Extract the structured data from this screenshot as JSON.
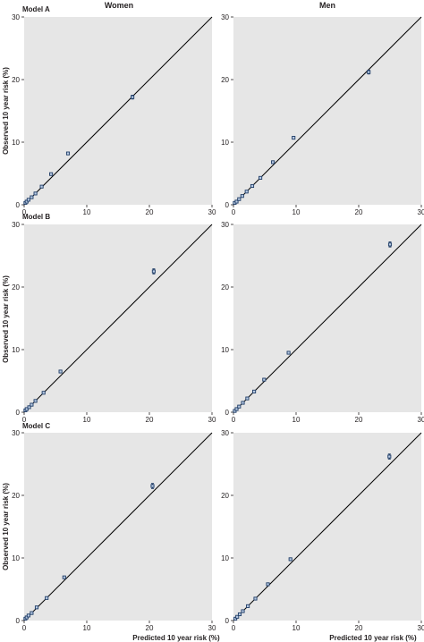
{
  "figure": {
    "columns": [
      "Women",
      "Men"
    ],
    "rows": [
      "Model A",
      "Model B",
      "Model C"
    ],
    "ylabel": "Observed 10 year risk (%)",
    "xlabel": "Predicted 10 year risk (%)"
  },
  "colors": {
    "panel_background": "#e6e6e6",
    "point_fill": "#b9cbe4",
    "point_edge": "#1f3c66",
    "reference_line": "#000000"
  },
  "chart_data": [
    {
      "type": "scatter",
      "model": "Model A",
      "sex": "Women",
      "xlim": [
        0,
        30
      ],
      "ylim": [
        0,
        30
      ],
      "xticks": [
        "0",
        "10",
        "20",
        "30"
      ],
      "yticks": [
        "0",
        "10",
        "20",
        "30"
      ],
      "reference_line": "y = x",
      "points": [
        {
          "x": 0.2,
          "y": 0.3,
          "lo": 0.2,
          "hi": 0.4
        },
        {
          "x": 0.4,
          "y": 0.5,
          "lo": 0.4,
          "hi": 0.6
        },
        {
          "x": 0.7,
          "y": 0.8,
          "lo": 0.7,
          "hi": 0.9
        },
        {
          "x": 1.2,
          "y": 1.2,
          "lo": 1.1,
          "hi": 1.3
        },
        {
          "x": 1.8,
          "y": 1.8,
          "lo": 1.7,
          "hi": 1.9
        },
        {
          "x": 2.8,
          "y": 2.9,
          "lo": 2.8,
          "hi": 3.0
        },
        {
          "x": 4.3,
          "y": 4.9,
          "lo": 4.8,
          "hi": 5.0
        },
        {
          "x": 7.0,
          "y": 8.2,
          "lo": 8.1,
          "hi": 8.3
        },
        {
          "x": 17.3,
          "y": 17.2,
          "lo": 16.9,
          "hi": 17.5
        }
      ]
    },
    {
      "type": "scatter",
      "model": "Model A",
      "sex": "Men",
      "xlim": [
        0,
        30
      ],
      "ylim": [
        0,
        30
      ],
      "xticks": [
        "0",
        "10",
        "20",
        "30"
      ],
      "yticks": [
        "0",
        "10",
        "20",
        "30"
      ],
      "reference_line": "y = x",
      "points": [
        {
          "x": 0.2,
          "y": 0.3,
          "lo": 0.2,
          "hi": 0.4
        },
        {
          "x": 0.5,
          "y": 0.5,
          "lo": 0.4,
          "hi": 0.6
        },
        {
          "x": 0.9,
          "y": 0.9,
          "lo": 0.8,
          "hi": 1.0
        },
        {
          "x": 1.4,
          "y": 1.4,
          "lo": 1.3,
          "hi": 1.5
        },
        {
          "x": 2.1,
          "y": 2.1,
          "lo": 2.0,
          "hi": 2.2
        },
        {
          "x": 3.0,
          "y": 3.0,
          "lo": 2.9,
          "hi": 3.1
        },
        {
          "x": 4.3,
          "y": 4.3,
          "lo": 4.2,
          "hi": 4.4
        },
        {
          "x": 6.3,
          "y": 6.8,
          "lo": 6.7,
          "hi": 6.9
        },
        {
          "x": 9.6,
          "y": 10.7,
          "lo": 10.5,
          "hi": 10.9
        },
        {
          "x": 21.6,
          "y": 21.2,
          "lo": 20.9,
          "hi": 21.5
        }
      ]
    },
    {
      "type": "scatter",
      "model": "Model B",
      "sex": "Women",
      "xlim": [
        0,
        30
      ],
      "ylim": [
        0,
        30
      ],
      "xticks": [
        "0",
        "10",
        "20",
        "30"
      ],
      "yticks": [
        "0",
        "10",
        "20",
        "30"
      ],
      "reference_line": "y = x",
      "points": [
        {
          "x": 0.2,
          "y": 0.3,
          "lo": 0.2,
          "hi": 0.4
        },
        {
          "x": 0.4,
          "y": 0.5,
          "lo": 0.4,
          "hi": 0.6
        },
        {
          "x": 0.8,
          "y": 0.8,
          "lo": 0.7,
          "hi": 0.9
        },
        {
          "x": 1.2,
          "y": 1.2,
          "lo": 1.1,
          "hi": 1.3
        },
        {
          "x": 1.8,
          "y": 1.8,
          "lo": 1.7,
          "hi": 1.9
        },
        {
          "x": 3.1,
          "y": 3.1,
          "lo": 3.0,
          "hi": 3.2
        },
        {
          "x": 5.8,
          "y": 6.5,
          "lo": 6.4,
          "hi": 6.6
        },
        {
          "x": 20.7,
          "y": 22.5,
          "lo": 22.1,
          "hi": 22.9
        }
      ]
    },
    {
      "type": "scatter",
      "model": "Model B",
      "sex": "Men",
      "xlim": [
        0,
        30
      ],
      "ylim": [
        0,
        30
      ],
      "xticks": [
        "0",
        "10",
        "20",
        "30"
      ],
      "yticks": [
        "0",
        "10",
        "20",
        "30"
      ],
      "reference_line": "y = x",
      "points": [
        {
          "x": 0.2,
          "y": 0.2,
          "lo": 0.1,
          "hi": 0.3
        },
        {
          "x": 0.5,
          "y": 0.5,
          "lo": 0.4,
          "hi": 0.6
        },
        {
          "x": 0.9,
          "y": 0.9,
          "lo": 0.8,
          "hi": 1.0
        },
        {
          "x": 1.5,
          "y": 1.5,
          "lo": 1.4,
          "hi": 1.6
        },
        {
          "x": 2.2,
          "y": 2.2,
          "lo": 2.1,
          "hi": 2.3
        },
        {
          "x": 3.3,
          "y": 3.3,
          "lo": 3.2,
          "hi": 3.4
        },
        {
          "x": 4.9,
          "y": 5.2,
          "lo": 5.1,
          "hi": 5.3
        },
        {
          "x": 8.8,
          "y": 9.5,
          "lo": 9.3,
          "hi": 9.7
        },
        {
          "x": 25.0,
          "y": 26.8,
          "lo": 26.4,
          "hi": 27.2
        }
      ]
    },
    {
      "type": "scatter",
      "model": "Model C",
      "sex": "Women",
      "xlim": [
        0,
        30
      ],
      "ylim": [
        0,
        30
      ],
      "xticks": [
        "0",
        "10",
        "20",
        "30"
      ],
      "yticks": [
        "0",
        "10",
        "20",
        "30"
      ],
      "reference_line": "y = x",
      "points": [
        {
          "x": 0.2,
          "y": 0.3,
          "lo": 0.2,
          "hi": 0.4
        },
        {
          "x": 0.4,
          "y": 0.5,
          "lo": 0.4,
          "hi": 0.6
        },
        {
          "x": 0.7,
          "y": 0.8,
          "lo": 0.7,
          "hi": 0.9
        },
        {
          "x": 1.2,
          "y": 1.2,
          "lo": 1.1,
          "hi": 1.3
        },
        {
          "x": 2.0,
          "y": 2.1,
          "lo": 2.0,
          "hi": 2.2
        },
        {
          "x": 3.6,
          "y": 3.6,
          "lo": 3.5,
          "hi": 3.7
        },
        {
          "x": 6.4,
          "y": 6.9,
          "lo": 6.8,
          "hi": 7.0
        },
        {
          "x": 20.5,
          "y": 21.5,
          "lo": 21.1,
          "hi": 21.9
        }
      ]
    },
    {
      "type": "scatter",
      "model": "Model C",
      "sex": "Men",
      "xlim": [
        0,
        30
      ],
      "ylim": [
        0,
        30
      ],
      "xticks": [
        "0",
        "10",
        "20",
        "30"
      ],
      "yticks": [
        "0",
        "10",
        "20",
        "30"
      ],
      "reference_line": "y = x",
      "points": [
        {
          "x": 0.3,
          "y": 0.3,
          "lo": 0.2,
          "hi": 0.4
        },
        {
          "x": 0.6,
          "y": 0.6,
          "lo": 0.5,
          "hi": 0.7
        },
        {
          "x": 1.0,
          "y": 1.0,
          "lo": 0.9,
          "hi": 1.1
        },
        {
          "x": 1.5,
          "y": 1.5,
          "lo": 1.4,
          "hi": 1.6
        },
        {
          "x": 2.3,
          "y": 2.3,
          "lo": 2.2,
          "hi": 2.4
        },
        {
          "x": 3.5,
          "y": 3.5,
          "lo": 3.4,
          "hi": 3.6
        },
        {
          "x": 5.5,
          "y": 5.8,
          "lo": 5.7,
          "hi": 5.9
        },
        {
          "x": 9.1,
          "y": 9.8,
          "lo": 9.6,
          "hi": 10.0
        },
        {
          "x": 24.9,
          "y": 26.2,
          "lo": 25.8,
          "hi": 26.6
        }
      ]
    }
  ]
}
